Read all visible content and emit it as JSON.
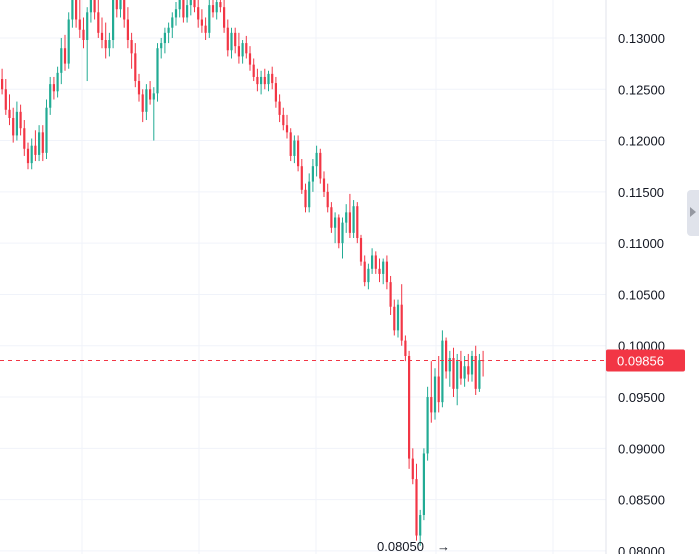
{
  "chart_data": {
    "type": "candlestick",
    "y_axis": {
      "ticks": [
        "0.13000",
        "0.12500",
        "0.12000",
        "0.11500",
        "0.11000",
        "0.10500",
        "0.10000",
        "0.09500",
        "0.09000",
        "0.08500",
        "0.08000"
      ],
      "tick_values": [
        0.13,
        0.125,
        0.12,
        0.115,
        0.11,
        0.105,
        0.1,
        0.095,
        0.09,
        0.085,
        0.08
      ],
      "range": [
        0.0797,
        0.1337
      ],
      "position": "right"
    },
    "grid": true,
    "last_price": {
      "label": "0.09856",
      "value": 0.09856,
      "color": "#f23645"
    },
    "min_marker": {
      "label": "0.08050",
      "arrow": "→",
      "value": 0.0805
    },
    "colors": {
      "up": "#22ab94",
      "down": "#f23645",
      "grid": "#f0f3fa"
    },
    "candles": [
      [
        0.126,
        0.127,
        0.1245,
        0.125
      ],
      [
        0.125,
        0.126,
        0.1225,
        0.123
      ],
      [
        0.123,
        0.1245,
        0.1215,
        0.1222
      ],
      [
        0.1222,
        0.1232,
        0.1198,
        0.1205
      ],
      [
        0.1205,
        0.1238,
        0.12,
        0.1228
      ],
      [
        0.1228,
        0.1235,
        0.1205,
        0.1212
      ],
      [
        0.1212,
        0.122,
        0.1185,
        0.1192
      ],
      [
        0.1192,
        0.1198,
        0.1172,
        0.1178
      ],
      [
        0.1178,
        0.1202,
        0.1172,
        0.1195
      ],
      [
        0.1195,
        0.121,
        0.118,
        0.1186
      ],
      [
        0.1186,
        0.1215,
        0.118,
        0.1208
      ],
      [
        0.1208,
        0.1215,
        0.118,
        0.1188
      ],
      [
        0.1188,
        0.124,
        0.1182,
        0.1232
      ],
      [
        0.1232,
        0.1262,
        0.1225,
        0.1255
      ],
      [
        0.1255,
        0.1262,
        0.124,
        0.1248
      ],
      [
        0.1248,
        0.1272,
        0.1242,
        0.1266
      ],
      [
        0.1266,
        0.13,
        0.1255,
        0.129
      ],
      [
        0.129,
        0.1303,
        0.1268,
        0.1275
      ],
      [
        0.1275,
        0.1325,
        0.127,
        0.1318
      ],
      [
        0.1318,
        0.1345,
        0.131,
        0.1338
      ],
      [
        0.1338,
        0.1345,
        0.131,
        0.1318
      ],
      [
        0.1318,
        0.1345,
        0.13,
        0.1308
      ],
      [
        0.1308,
        0.132,
        0.129,
        0.1298
      ],
      [
        0.1298,
        0.133,
        0.1258,
        0.1325
      ],
      [
        0.1325,
        0.1345,
        0.1315,
        0.1338
      ],
      [
        0.1338,
        0.1345,
        0.1318,
        0.1325
      ],
      [
        0.1325,
        0.1345,
        0.13,
        0.1305
      ],
      [
        0.1305,
        0.132,
        0.129,
        0.1298
      ],
      [
        0.1298,
        0.1315,
        0.128,
        0.129
      ],
      [
        0.129,
        0.1305,
        0.1282,
        0.1298
      ],
      [
        0.1298,
        0.1345,
        0.129,
        0.1338
      ],
      [
        0.1338,
        0.1345,
        0.132,
        0.1328
      ],
      [
        0.1328,
        0.1345,
        0.132,
        0.1337
      ],
      [
        0.1337,
        0.1345,
        0.131,
        0.1318
      ],
      [
        0.1318,
        0.133,
        0.129,
        0.1298
      ],
      [
        0.1298,
        0.1305,
        0.127,
        0.1285
      ],
      [
        0.1285,
        0.1295,
        0.1252,
        0.1258
      ],
      [
        0.1258,
        0.1265,
        0.1238,
        0.1245
      ],
      [
        0.1245,
        0.125,
        0.1218,
        0.1228
      ],
      [
        0.1228,
        0.1255,
        0.122,
        0.125
      ],
      [
        0.125,
        0.1258,
        0.1235,
        0.124
      ],
      [
        0.124,
        0.1252,
        0.12,
        0.1246
      ],
      [
        0.1246,
        0.1295,
        0.1238,
        0.129
      ],
      [
        0.129,
        0.13,
        0.128,
        0.1295
      ],
      [
        0.1295,
        0.131,
        0.1285,
        0.1305
      ],
      [
        0.1305,
        0.1315,
        0.1295,
        0.131
      ],
      [
        0.131,
        0.1325,
        0.13,
        0.132
      ],
      [
        0.132,
        0.1335,
        0.1312,
        0.1328
      ],
      [
        0.1328,
        0.1345,
        0.132,
        0.1338
      ],
      [
        0.1338,
        0.1345,
        0.1315,
        0.132
      ],
      [
        0.132,
        0.134,
        0.1315,
        0.1332
      ],
      [
        0.1332,
        0.1345,
        0.1322,
        0.134
      ],
      [
        0.134,
        0.1345,
        0.1325,
        0.133
      ],
      [
        0.133,
        0.1345,
        0.131,
        0.1318
      ],
      [
        0.1318,
        0.1328,
        0.1305,
        0.1312
      ],
      [
        0.1312,
        0.132,
        0.1298,
        0.1305
      ],
      [
        0.1305,
        0.134,
        0.13,
        0.1332
      ],
      [
        0.1332,
        0.1345,
        0.132,
        0.1325
      ],
      [
        0.1325,
        0.134,
        0.1318,
        0.1335
      ],
      [
        0.1335,
        0.1345,
        0.1325,
        0.133
      ],
      [
        0.133,
        0.1345,
        0.1305,
        0.131
      ],
      [
        0.131,
        0.1318,
        0.1282,
        0.1288
      ],
      [
        0.1288,
        0.131,
        0.128,
        0.1305
      ],
      [
        0.1305,
        0.131,
        0.1285,
        0.1292
      ],
      [
        0.1292,
        0.1305,
        0.1275,
        0.1282
      ],
      [
        0.1282,
        0.1298,
        0.1275,
        0.1295
      ],
      [
        0.1295,
        0.1302,
        0.128,
        0.1285
      ],
      [
        0.1285,
        0.1292,
        0.1268,
        0.1274
      ],
      [
        0.1274,
        0.128,
        0.1258,
        0.1262
      ],
      [
        0.1262,
        0.127,
        0.1248,
        0.1255
      ],
      [
        0.1255,
        0.1268,
        0.1245,
        0.1262
      ],
      [
        0.1262,
        0.127,
        0.125,
        0.1255
      ],
      [
        0.1255,
        0.1268,
        0.1248,
        0.1265
      ],
      [
        0.1265,
        0.1272,
        0.125,
        0.1256
      ],
      [
        0.1256,
        0.1262,
        0.1232,
        0.1238
      ],
      [
        0.1238,
        0.1245,
        0.1218,
        0.1225
      ],
      [
        0.1225,
        0.1232,
        0.121,
        0.1215
      ],
      [
        0.1215,
        0.1225,
        0.1202,
        0.1208
      ],
      [
        0.1208,
        0.1212,
        0.118,
        0.1185
      ],
      [
        0.1185,
        0.1205,
        0.1178,
        0.12
      ],
      [
        0.12,
        0.1205,
        0.117,
        0.1175
      ],
      [
        0.1175,
        0.1182,
        0.1148,
        0.1152
      ],
      [
        0.1152,
        0.1158,
        0.113,
        0.1135
      ],
      [
        0.1135,
        0.1168,
        0.113,
        0.116
      ],
      [
        0.116,
        0.1182,
        0.115,
        0.1175
      ],
      [
        0.1175,
        0.1195,
        0.1165,
        0.1188
      ],
      [
        0.1188,
        0.1192,
        0.1158,
        0.1163
      ],
      [
        0.1163,
        0.117,
        0.1145,
        0.115
      ],
      [
        0.115,
        0.1158,
        0.113,
        0.1135
      ],
      [
        0.1135,
        0.114,
        0.111,
        0.1115
      ],
      [
        0.1115,
        0.113,
        0.11,
        0.1125
      ],
      [
        0.1125,
        0.1128,
        0.1095,
        0.11
      ],
      [
        0.11,
        0.1125,
        0.1085,
        0.112
      ],
      [
        0.112,
        0.1138,
        0.111,
        0.113
      ],
      [
        0.113,
        0.1148,
        0.1105,
        0.111
      ],
      [
        0.111,
        0.1142,
        0.1105,
        0.1136
      ],
      [
        0.1136,
        0.114,
        0.11,
        0.1105
      ],
      [
        0.1105,
        0.1108,
        0.1078,
        0.1082
      ],
      [
        0.1082,
        0.1088,
        0.1058,
        0.1062
      ],
      [
        0.1062,
        0.108,
        0.1055,
        0.1075
      ],
      [
        0.1075,
        0.1095,
        0.107,
        0.1088
      ],
      [
        0.1088,
        0.1092,
        0.107,
        0.1075
      ],
      [
        0.1075,
        0.1085,
        0.1062,
        0.107
      ],
      [
        0.107,
        0.1085,
        0.106,
        0.1082
      ],
      [
        0.1082,
        0.1088,
        0.1055,
        0.1062
      ],
      [
        0.1062,
        0.1068,
        0.103,
        0.1038
      ],
      [
        0.1038,
        0.1045,
        0.101,
        0.1015
      ],
      [
        0.1015,
        0.1045,
        0.1008,
        0.104
      ],
      [
        0.104,
        0.106,
        0.1,
        0.1005
      ],
      [
        0.1005,
        0.101,
        0.0985,
        0.099
      ],
      [
        0.099,
        0.0995,
        0.088,
        0.089
      ],
      [
        0.089,
        0.09,
        0.0865,
        0.087
      ],
      [
        0.087,
        0.0885,
        0.081,
        0.0815
      ],
      [
        0.0815,
        0.084,
        0.0805,
        0.0835
      ],
      [
        0.0835,
        0.09,
        0.083,
        0.0895
      ],
      [
        0.0895,
        0.096,
        0.0888,
        0.095
      ],
      [
        0.095,
        0.0985,
        0.0925,
        0.0935
      ],
      [
        0.0935,
        0.0978,
        0.0928,
        0.097
      ],
      [
        0.097,
        0.099,
        0.0935,
        0.0945
      ],
      [
        0.0945,
        0.1015,
        0.094,
        0.1005
      ],
      [
        0.1005,
        0.1008,
        0.0968,
        0.0975
      ],
      [
        0.0975,
        0.0995,
        0.096,
        0.0988
      ],
      [
        0.0988,
        0.0998,
        0.095,
        0.0958
      ],
      [
        0.0958,
        0.0992,
        0.0942,
        0.0985
      ],
      [
        0.0985,
        0.0995,
        0.0962,
        0.0968
      ],
      [
        0.0968,
        0.099,
        0.096,
        0.098
      ],
      [
        0.098,
        0.0992,
        0.0965,
        0.0972
      ],
      [
        0.0972,
        0.0995,
        0.0965,
        0.099
      ],
      [
        0.099,
        0.1,
        0.0952,
        0.0958
      ],
      [
        0.0958,
        0.0992,
        0.0955,
        0.0986
      ],
      [
        0.0986,
        0.0995,
        0.097,
        0.0985
      ]
    ]
  }
}
